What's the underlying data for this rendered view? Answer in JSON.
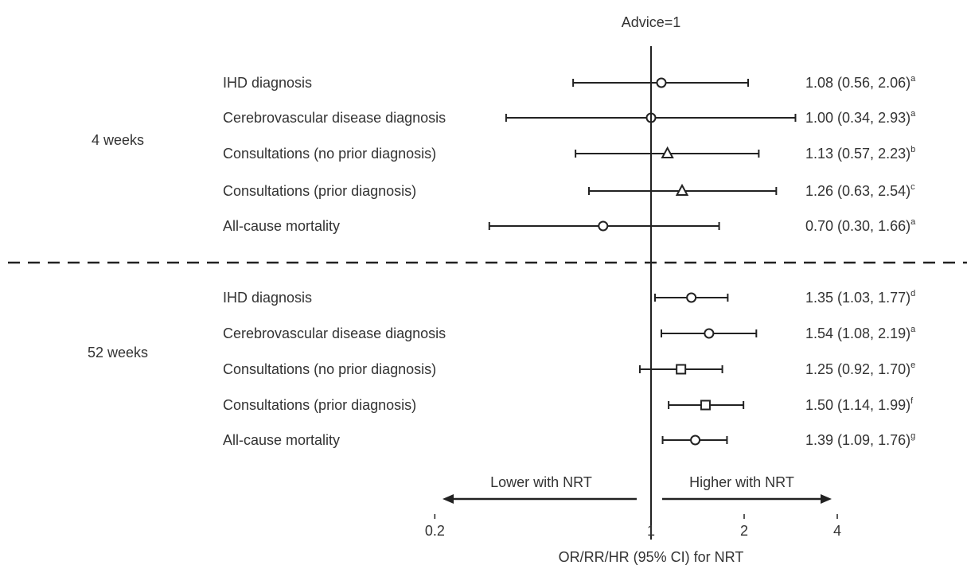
{
  "chart_data": {
    "type": "forest",
    "title": "Advice=1",
    "xlabel": "OR/RR/HR (95% CI) for NRT",
    "x_scale": "log",
    "xlim": [
      0.2,
      4
    ],
    "x_ticks": [
      "0.2",
      "1",
      "2",
      "4"
    ],
    "x_tick_values": [
      0.2,
      1,
      2,
      4
    ],
    "reference_value": 1,
    "direction_labels": {
      "left": "Lower with NRT",
      "right": "Higher with NRT"
    },
    "groups": [
      {
        "name": "4 weeks",
        "rows": [
          {
            "label": "IHD diagnosis",
            "estimate": 1.08,
            "lower": 0.56,
            "upper": 2.06,
            "marker": "circle",
            "text": "1.08 (0.56, 2.06)",
            "note": "a"
          },
          {
            "label": "Cerebrovascular disease diagnosis",
            "estimate": 1.0,
            "lower": 0.34,
            "upper": 2.93,
            "marker": "circle",
            "text": "1.00 (0.34, 2.93)",
            "note": "a"
          },
          {
            "label": "Consultations (no prior diagnosis)",
            "estimate": 1.13,
            "lower": 0.57,
            "upper": 2.23,
            "marker": "triangle",
            "text": "1.13 (0.57, 2.23)",
            "note": "b"
          },
          {
            "label": "Consultations (prior diagnosis)",
            "estimate": 1.26,
            "lower": 0.63,
            "upper": 2.54,
            "marker": "triangle",
            "text": "1.26 (0.63, 2.54)",
            "note": "c"
          },
          {
            "label": "All-cause mortality",
            "estimate": 0.7,
            "lower": 0.3,
            "upper": 1.66,
            "marker": "circle",
            "text": "0.70 (0.30, 1.66)",
            "note": "a"
          }
        ]
      },
      {
        "name": "52 weeks",
        "rows": [
          {
            "label": "IHD diagnosis",
            "estimate": 1.35,
            "lower": 1.03,
            "upper": 1.77,
            "marker": "circle",
            "text": "1.35 (1.03, 1.77)",
            "note": "d"
          },
          {
            "label": "Cerebrovascular disease diagnosis",
            "estimate": 1.54,
            "lower": 1.08,
            "upper": 2.19,
            "marker": "circle",
            "text": "1.54 (1.08, 2.19)",
            "note": "a"
          },
          {
            "label": "Consultations (no prior diagnosis)",
            "estimate": 1.25,
            "lower": 0.92,
            "upper": 1.7,
            "marker": "square",
            "text": "1.25 (0.92, 1.70)",
            "note": "e"
          },
          {
            "label": "Consultations (prior diagnosis)",
            "estimate": 1.5,
            "lower": 1.14,
            "upper": 1.99,
            "marker": "square",
            "text": "1.50 (1.14, 1.99)",
            "note": "f"
          },
          {
            "label": "All-cause mortality",
            "estimate": 1.39,
            "lower": 1.09,
            "upper": 1.76,
            "marker": "circle",
            "text": "1.39 (1.09, 1.76)",
            "note": "g"
          }
        ]
      }
    ]
  }
}
